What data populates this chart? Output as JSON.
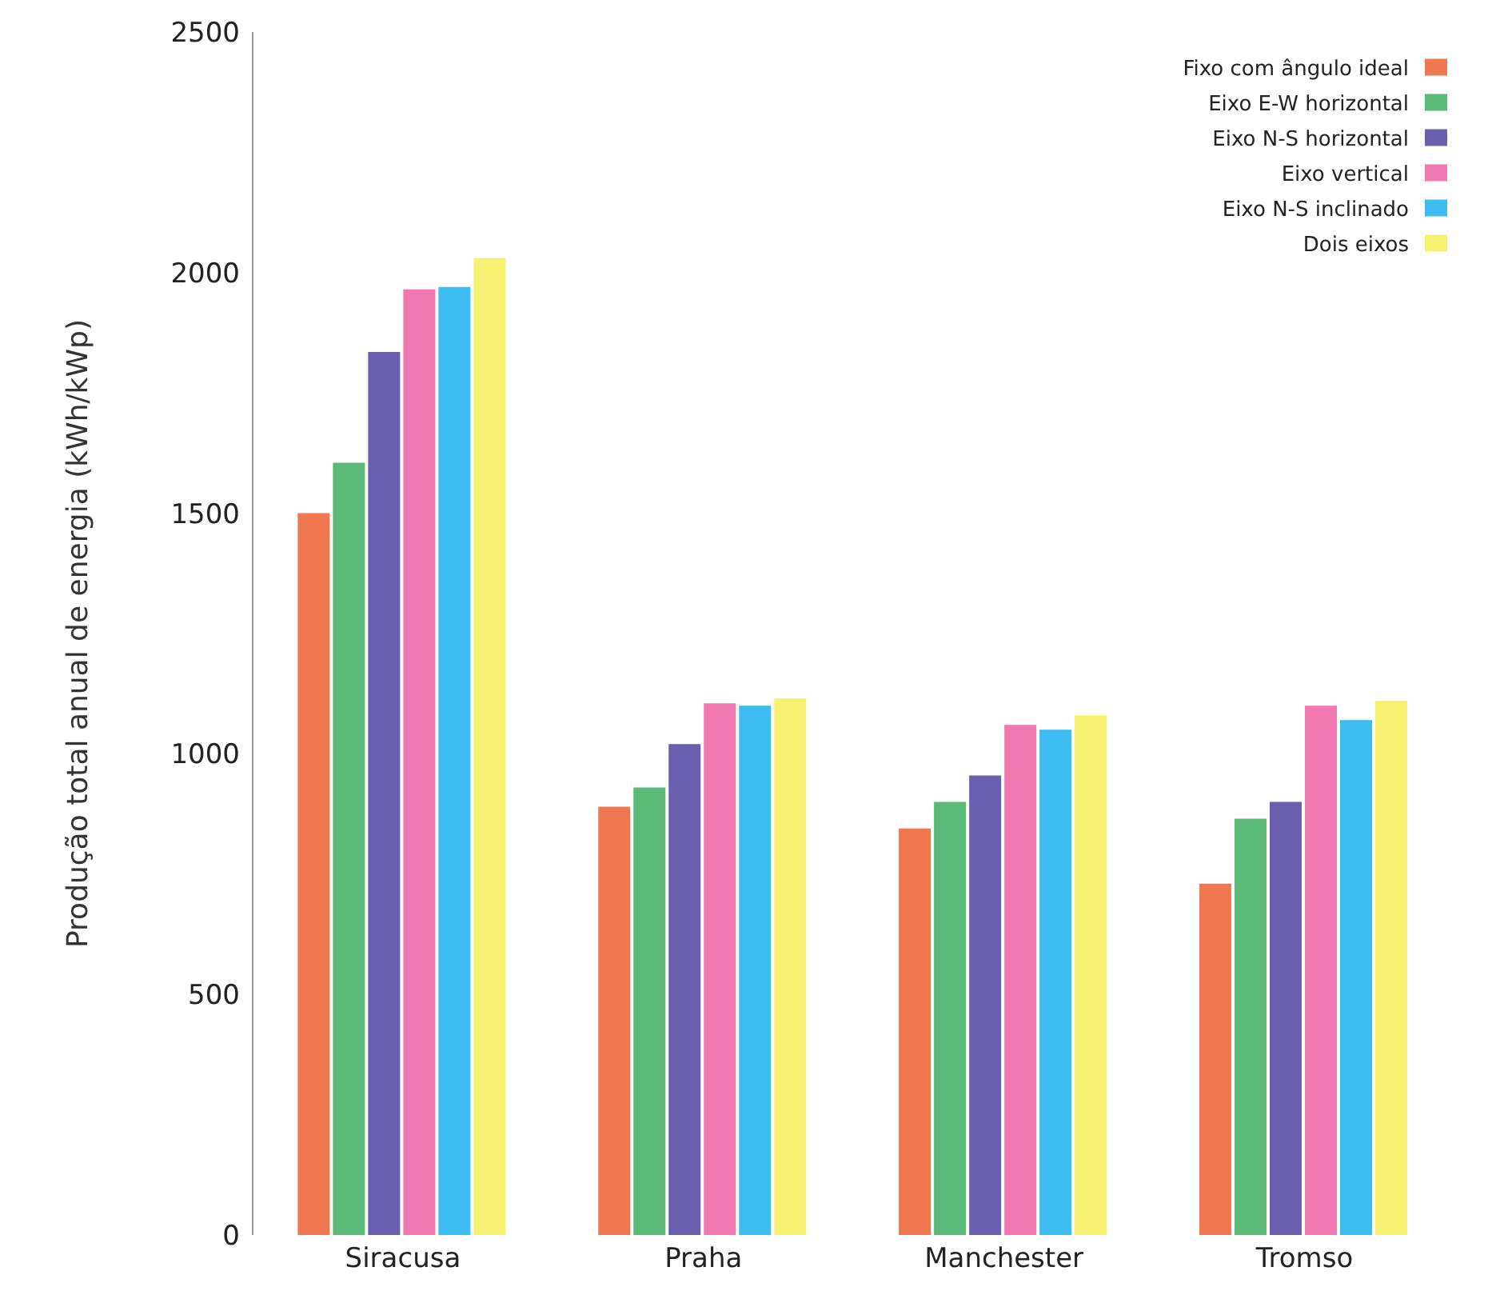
{
  "chart_data": {
    "type": "bar",
    "ylabel": "Produção total anual de energia (kWh/kWp)",
    "categories": [
      "Siracusa",
      "Praha",
      "Manchester",
      "Tromso"
    ],
    "series": [
      {
        "name": "Fixo com ângulo ideal",
        "color": "#f07850",
        "values": [
          1500,
          890,
          845,
          730
        ]
      },
      {
        "name": "Eixo E-W horizontal",
        "color": "#5cba78",
        "values": [
          1605,
          930,
          900,
          865
        ]
      },
      {
        "name": "Eixo N-S horizontal",
        "color": "#6a5fae",
        "values": [
          1835,
          1020,
          955,
          900
        ]
      },
      {
        "name": "Eixo vertical",
        "color": "#f078b0",
        "values": [
          1965,
          1105,
          1060,
          1100
        ]
      },
      {
        "name": "Eixo N-S inclinado",
        "color": "#3cbcf0",
        "values": [
          1970,
          1100,
          1050,
          1070
        ]
      },
      {
        "name": "Dois eixos",
        "color": "#f8f070",
        "values": [
          2030,
          1115,
          1080,
          1110
        ]
      }
    ],
    "ylim": [
      0,
      2500
    ],
    "yticks": [
      0,
      500,
      1000,
      1500,
      2000,
      2500
    ],
    "legend": "top right"
  }
}
